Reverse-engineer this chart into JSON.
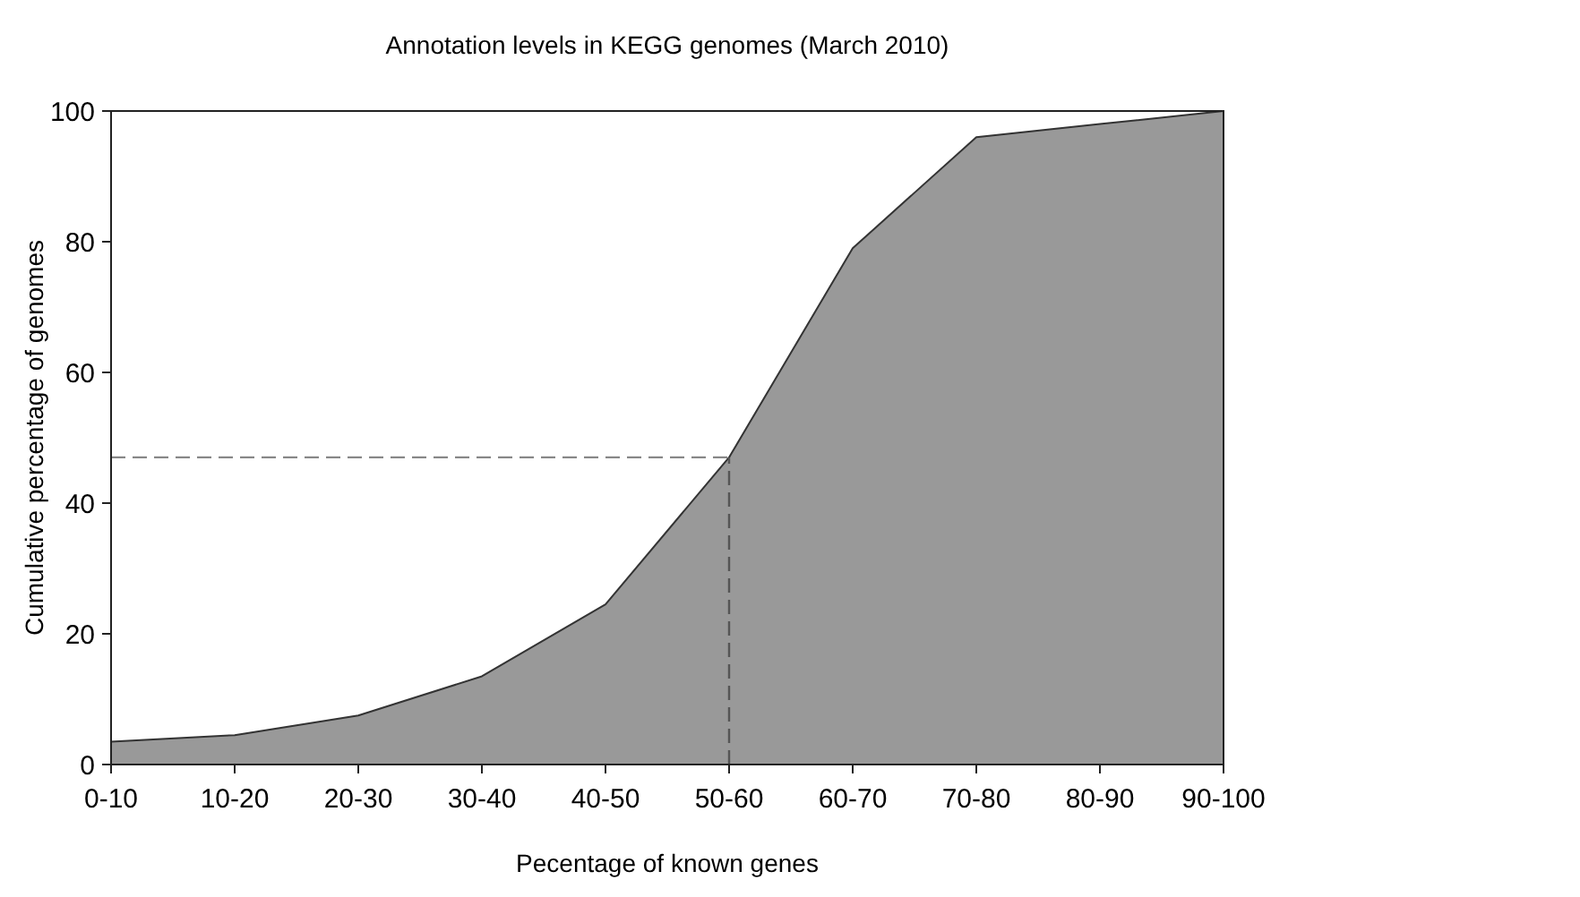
{
  "chart_data": {
    "type": "area",
    "title": "Annotation levels in KEGG genomes (March 2010)",
    "xlabel": "Pecentage of known genes",
    "ylabel": "Cumulative percentage of genomes",
    "categories": [
      "0-10",
      "10-20",
      "20-30",
      "30-40",
      "40-50",
      "50-60",
      "60-70",
      "70-80",
      "80-90",
      "90-100"
    ],
    "series": [
      {
        "color": "#999999",
        "values": [
          3.5,
          4.5,
          7.5,
          13.5,
          24.5,
          47,
          79,
          96,
          98,
          100
        ]
      }
    ],
    "ylim": [
      0,
      100
    ],
    "yticks": [
      0,
      20,
      40,
      60,
      80,
      100
    ],
    "grid": false,
    "ref_lines": [
      {
        "axis": "y",
        "value": 47,
        "color": "#888888",
        "line_style": "dashed"
      },
      {
        "axis": "x",
        "value": "50-60",
        "color": "#555555",
        "line_style": "dashed"
      }
    ]
  }
}
